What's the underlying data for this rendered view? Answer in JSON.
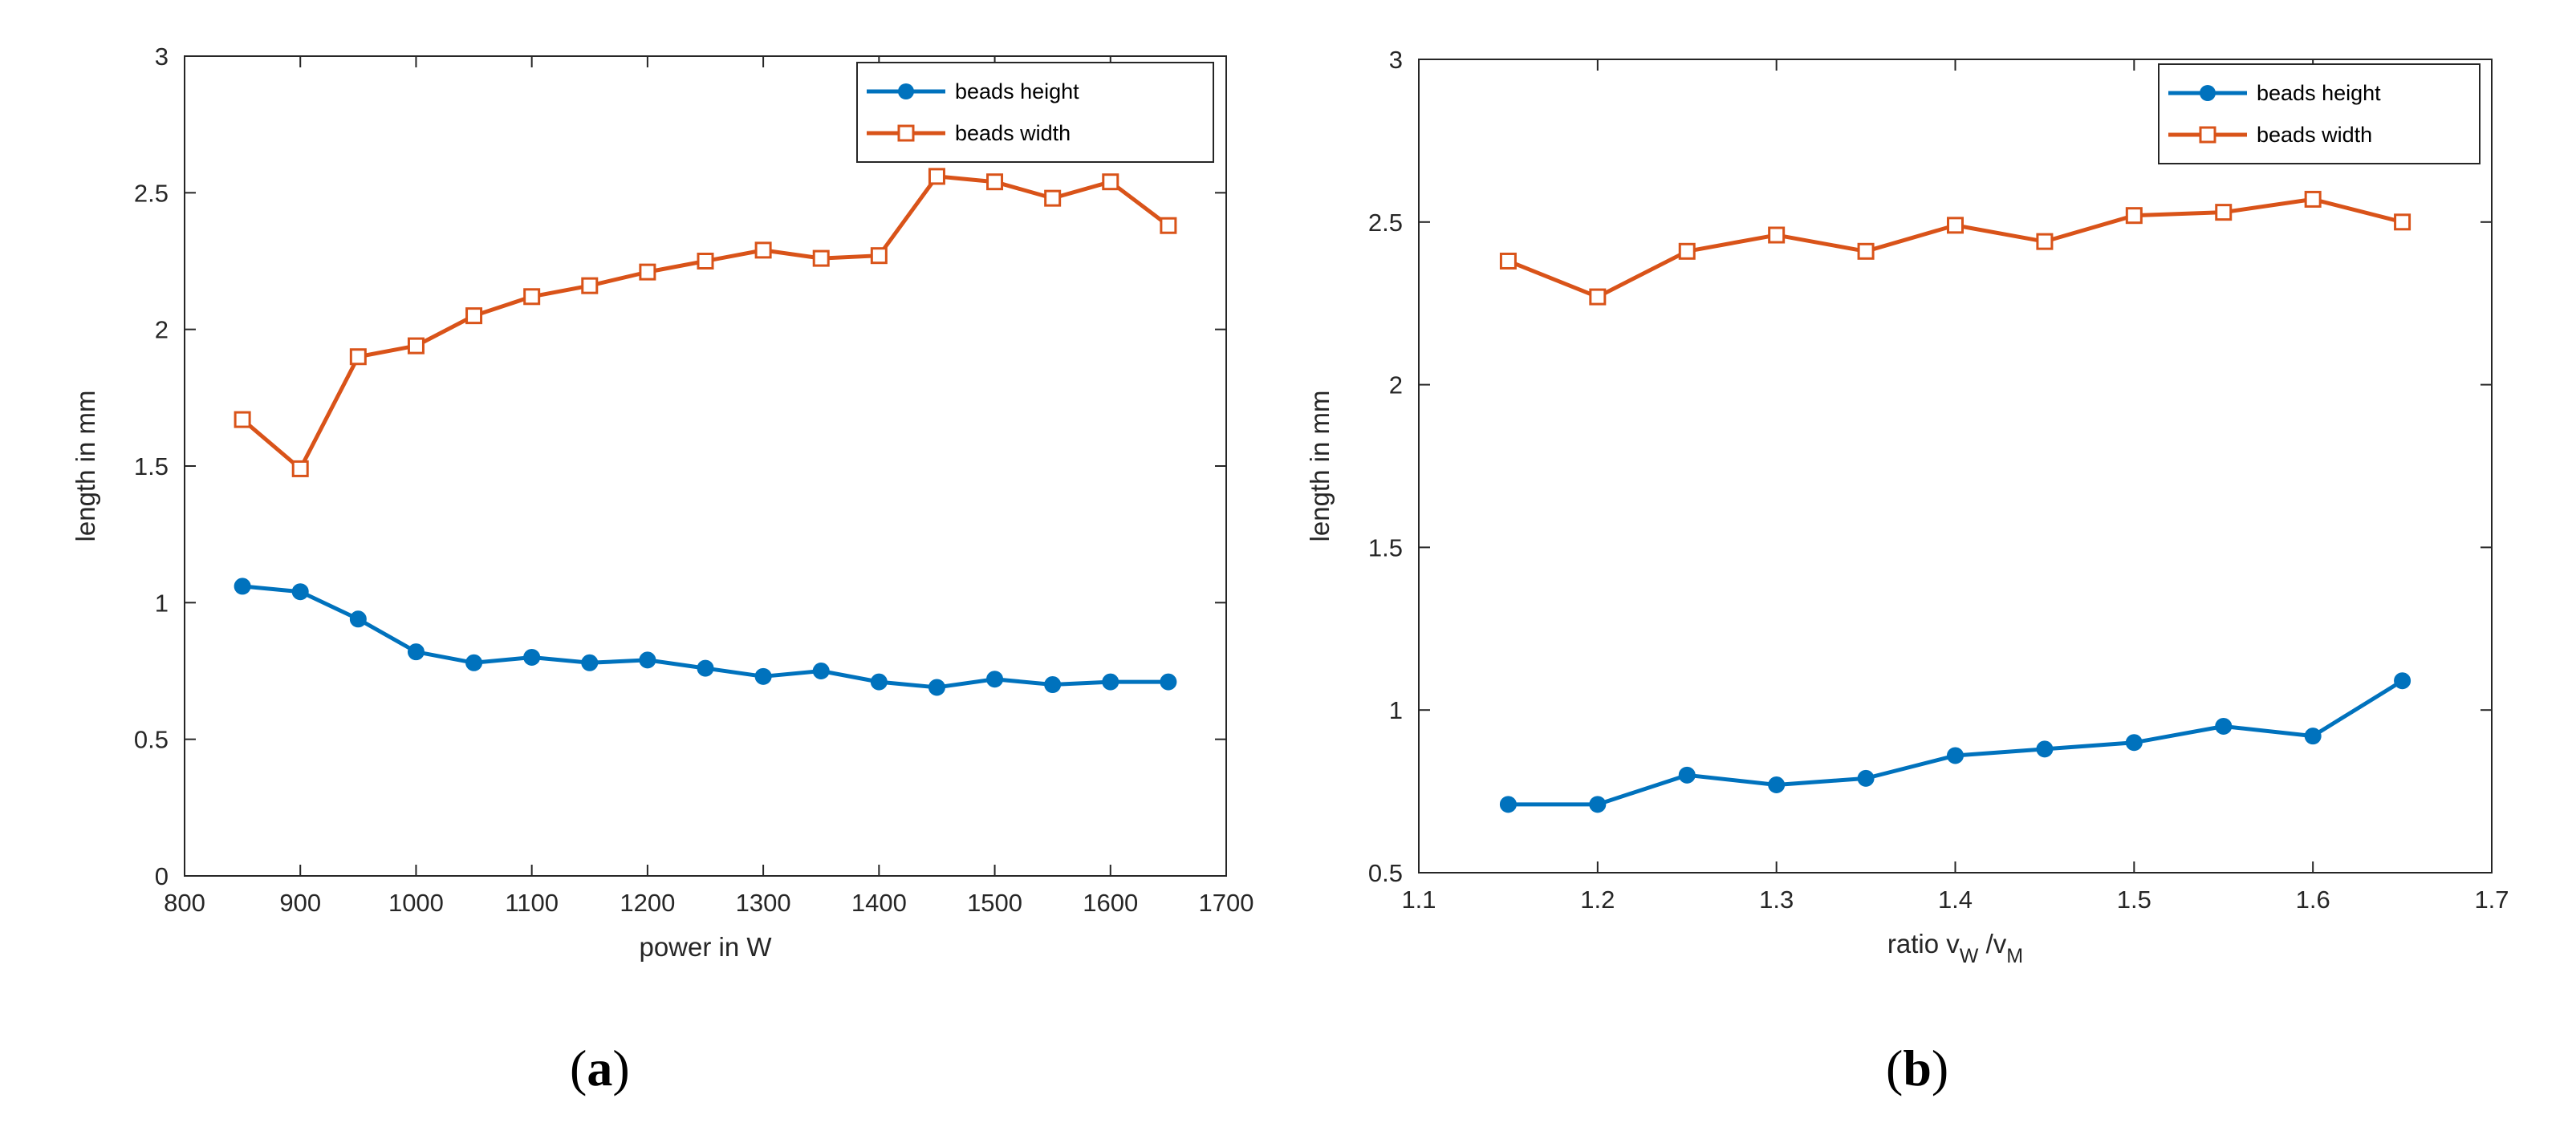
{
  "colors": {
    "height": "#0072BD",
    "width": "#D95319",
    "axis": "#262626"
  },
  "chart_data": [
    {
      "type": "line",
      "caption": "a",
      "title": "",
      "xlabel": "power in W",
      "ylabel": "length in mm",
      "xlim": [
        800,
        1700
      ],
      "ylim": [
        0,
        3
      ],
      "xticks": [
        "800",
        "900",
        "1000",
        "1100",
        "1200",
        "1300",
        "1400",
        "1500",
        "1600",
        "1700"
      ],
      "yticks": [
        "0",
        "0.5",
        "1",
        "1.5",
        "2",
        "2.5",
        "3"
      ],
      "x": [
        850,
        900,
        950,
        1000,
        1050,
        1100,
        1150,
        1200,
        1250,
        1300,
        1350,
        1400,
        1450,
        1500,
        1550,
        1600,
        1650
      ],
      "legend_position": "top-right",
      "series": [
        {
          "name": "beads height",
          "marker": "circle",
          "values": [
            1.06,
            1.04,
            0.94,
            0.82,
            0.78,
            0.8,
            0.78,
            0.79,
            0.76,
            0.73,
            0.75,
            0.71,
            0.69,
            0.72,
            0.7,
            0.71,
            0.71
          ]
        },
        {
          "name": "beads width",
          "marker": "square",
          "values": [
            1.67,
            1.49,
            1.9,
            1.94,
            2.05,
            2.12,
            2.16,
            2.21,
            2.25,
            2.29,
            2.26,
            2.27,
            2.56,
            2.54,
            2.48,
            2.54,
            2.38
          ]
        }
      ]
    },
    {
      "type": "line",
      "caption": "b",
      "title": "",
      "xlabel": "ratio v_W /v_M",
      "xlabel_parts": {
        "pre": "ratio v",
        "sub1": "W",
        "mid": " /v",
        "sub2": "M"
      },
      "ylabel": "length in mm",
      "xlim": [
        1.1,
        1.7
      ],
      "ylim": [
        0.5,
        3
      ],
      "xticks": [
        "1.1",
        "1.2",
        "1.3",
        "1.4",
        "1.5",
        "1.6",
        "1.7"
      ],
      "yticks": [
        "0.5",
        "1",
        "1.5",
        "2",
        "2.5",
        "3"
      ],
      "x": [
        1.15,
        1.2,
        1.25,
        1.3,
        1.35,
        1.4,
        1.45,
        1.5,
        1.55,
        1.6,
        1.65
      ],
      "legend_position": "top-right",
      "series": [
        {
          "name": "beads height",
          "marker": "circle",
          "values": [
            0.71,
            0.71,
            0.8,
            0.77,
            0.79,
            0.86,
            0.88,
            0.9,
            0.95,
            0.92,
            1.09
          ]
        },
        {
          "name": "beads width",
          "marker": "square",
          "values": [
            2.38,
            2.27,
            2.41,
            2.46,
            2.41,
            2.49,
            2.44,
            2.52,
            2.53,
            2.57,
            2.5
          ]
        }
      ]
    }
  ]
}
